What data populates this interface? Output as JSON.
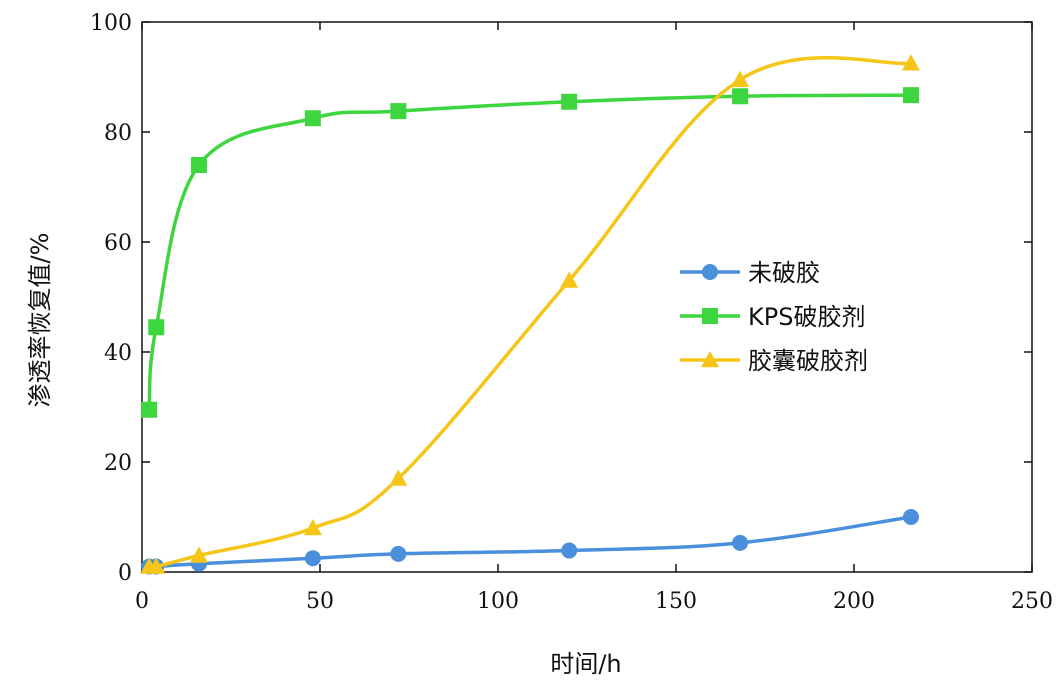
{
  "chart_data": {
    "type": "line",
    "xlabel": "时间/h",
    "ylabel": "渗透率恢复值/%",
    "xlim": [
      0,
      250
    ],
    "ylim": [
      0,
      100
    ],
    "x_ticks": [
      0,
      50,
      100,
      150,
      200,
      250
    ],
    "y_ticks": [
      0,
      20,
      40,
      60,
      80,
      100
    ],
    "grid": false,
    "legend_position": "center-right",
    "series": [
      {
        "name": "未破胶",
        "color": "#4a8fdc",
        "marker": "circle",
        "x": [
          2,
          4,
          16,
          48,
          72,
          120,
          168,
          216
        ],
        "y": [
          1,
          1,
          1.5,
          2.5,
          3.3,
          3.9,
          5.3,
          10
        ]
      },
      {
        "name": "KPS破胶剂",
        "color": "#3ed63e",
        "marker": "square",
        "x": [
          2,
          4,
          16,
          48,
          72,
          120,
          168,
          216
        ],
        "y": [
          29.5,
          44.5,
          74,
          82.5,
          83.8,
          85.5,
          86.5,
          86.7
        ]
      },
      {
        "name": "胶囊破胶剂",
        "color": "#f5c518",
        "marker": "triangle",
        "x": [
          2,
          4,
          16,
          48,
          72,
          120,
          168,
          216
        ],
        "y": [
          1,
          1,
          3,
          8,
          17,
          53,
          89.5,
          92.5
        ]
      }
    ]
  }
}
